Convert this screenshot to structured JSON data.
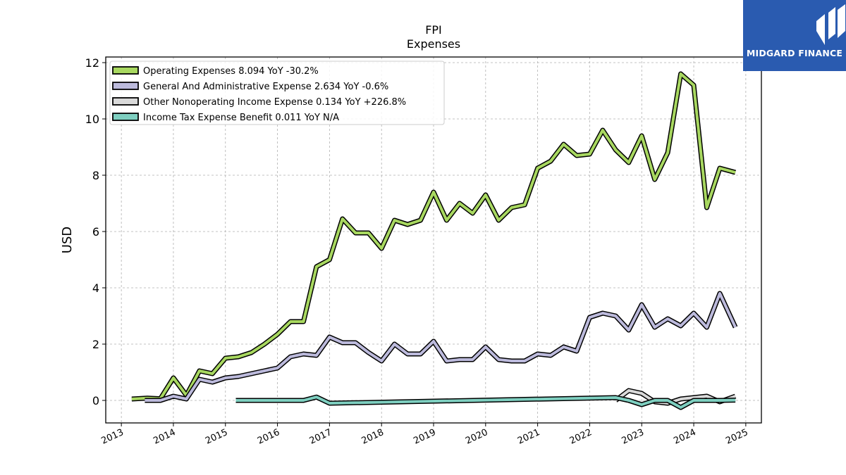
{
  "chart_data": {
    "type": "line",
    "title": "FPI",
    "subtitle": "Expenses",
    "xlabel": "",
    "ylabel": "USD",
    "ylim": [
      -0.8,
      12.2
    ],
    "xlim": [
      2012.7,
      2025.3
    ],
    "yticks": [
      0,
      2,
      4,
      6,
      8,
      10,
      12
    ],
    "xticks": [
      2013,
      2014,
      2015,
      2016,
      2017,
      2018,
      2019,
      2020,
      2021,
      2022,
      2023,
      2024,
      2025
    ],
    "grid": true,
    "legend_position": "top-left",
    "series": [
      {
        "name": "Operating Expenses",
        "legend": "Operating Expenses  8.094 YoY -30.2%",
        "color": "#a8d860",
        "x": [
          2013.2,
          2013.5,
          2013.75,
          2014.0,
          2014.25,
          2014.5,
          2014.75,
          2015.0,
          2015.25,
          2015.5,
          2015.75,
          2016.0,
          2016.25,
          2016.5,
          2016.75,
          2017.0,
          2017.25,
          2017.5,
          2017.75,
          2018.0,
          2018.25,
          2018.5,
          2018.75,
          2019.0,
          2019.25,
          2019.5,
          2019.75,
          2020.0,
          2020.25,
          2020.5,
          2020.75,
          2021.0,
          2021.25,
          2021.5,
          2021.75,
          2022.0,
          2022.25,
          2022.5,
          2022.75,
          2023.0,
          2023.25,
          2023.5,
          2023.75,
          2024.0,
          2024.25,
          2024.5,
          2024.8
        ],
        "y": [
          0.05,
          0.08,
          0.06,
          0.8,
          0.18,
          1.05,
          0.95,
          1.5,
          1.55,
          1.7,
          2.0,
          2.35,
          2.8,
          2.8,
          4.75,
          5.0,
          6.45,
          5.95,
          5.95,
          5.4,
          6.4,
          6.25,
          6.4,
          7.4,
          6.4,
          7.0,
          6.65,
          7.3,
          6.4,
          6.85,
          6.95,
          8.25,
          8.5,
          9.1,
          8.7,
          8.75,
          9.6,
          8.9,
          8.45,
          9.4,
          7.85,
          8.8,
          11.6,
          11.2,
          6.85,
          8.25,
          8.1
        ]
      },
      {
        "name": "General And Administrative Expense",
        "legend": "General And Administrative Expense  2.634 YoY -0.6%",
        "color": "#bcbadc",
        "x": [
          2013.45,
          2013.75,
          2014.0,
          2014.25,
          2014.5,
          2014.75,
          2015.0,
          2015.25,
          2015.5,
          2015.75,
          2016.0,
          2016.25,
          2016.5,
          2016.75,
          2017.0,
          2017.25,
          2017.5,
          2017.75,
          2018.0,
          2018.25,
          2018.5,
          2018.75,
          2019.0,
          2019.25,
          2019.5,
          2019.75,
          2020.0,
          2020.25,
          2020.5,
          2020.75,
          2021.0,
          2021.25,
          2021.5,
          2021.75,
          2022.0,
          2022.25,
          2022.5,
          2022.75,
          2023.0,
          2023.25,
          2023.5,
          2023.75,
          2024.0,
          2024.25,
          2024.5,
          2024.8
        ],
        "y": [
          0.0,
          0.0,
          0.15,
          0.05,
          0.75,
          0.65,
          0.8,
          0.85,
          0.95,
          1.05,
          1.15,
          1.55,
          1.65,
          1.6,
          2.25,
          2.05,
          2.05,
          1.7,
          1.4,
          2.0,
          1.65,
          1.65,
          2.1,
          1.4,
          1.45,
          1.45,
          1.9,
          1.45,
          1.4,
          1.4,
          1.65,
          1.6,
          1.9,
          1.75,
          2.95,
          3.1,
          3.0,
          2.5,
          3.4,
          2.6,
          2.9,
          2.65,
          3.1,
          2.6,
          3.8,
          2.6
        ]
      },
      {
        "name": "Other Nonoperating Income Expense",
        "legend": "Other Nonoperating Income Expense  0.134 YoY +226.8%",
        "color": "#d9d9d9",
        "x": [
          2022.5,
          2022.75,
          2023.0,
          2023.25,
          2023.5,
          2023.75,
          2024.0,
          2024.25,
          2024.5,
          2024.8
        ],
        "y": [
          0.0,
          0.35,
          0.25,
          -0.05,
          -0.1,
          0.05,
          0.1,
          0.15,
          -0.05,
          0.15
        ]
      },
      {
        "name": "Income Tax Expense Benefit",
        "legend": "Income Tax Expense Benefit  0.011 YoY N/A",
        "color": "#7ecfc0",
        "x": [
          2015.2,
          2015.5,
          2016.0,
          2016.5,
          2016.75,
          2017.0,
          2022.5,
          2022.75,
          2023.0,
          2023.25,
          2023.5,
          2023.75,
          2024.0,
          2024.25,
          2024.5,
          2024.8
        ],
        "y": [
          0.0,
          0.0,
          0.0,
          0.0,
          0.12,
          -0.1,
          0.1,
          0.0,
          -0.15,
          0.0,
          0.0,
          -0.25,
          0.0,
          0.0,
          0.0,
          0.01
        ]
      }
    ]
  },
  "logo": {
    "text": "MIDGARD FINANCE",
    "bg_color": "#2a5bb0"
  }
}
